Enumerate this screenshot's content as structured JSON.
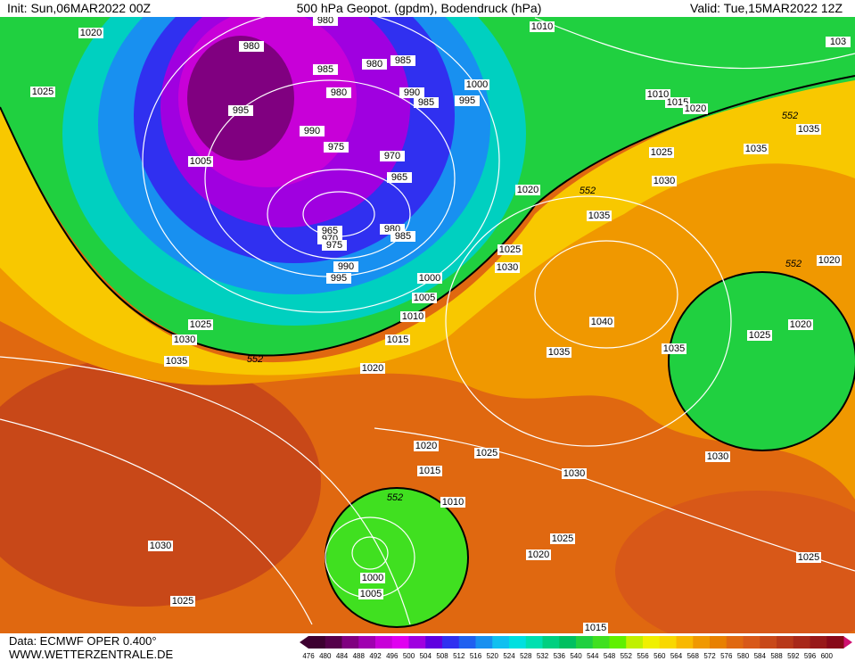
{
  "header": {
    "init": "Init: Sun,06MAR2022 00Z",
    "title": "500 hPa Geopot. (gpdm), Bodendruck (hPa)",
    "valid": "Valid: Tue,15MAR2022 12Z"
  },
  "footer": {
    "source": "Data: ECMWF OPER 0.400°",
    "site": "WWW.WETTERZENTRALE.DE"
  },
  "colorbar": {
    "labels": [
      476,
      480,
      484,
      488,
      492,
      496,
      500,
      504,
      508,
      512,
      516,
      520,
      524,
      528,
      532,
      536,
      540,
      544,
      548,
      552,
      556,
      560,
      564,
      568,
      572,
      576,
      580,
      584,
      588,
      592,
      596,
      600
    ]
  },
  "isobar_labels": [
    "1020",
    "1010",
    "103",
    "980",
    "980",
    "985",
    "980",
    "985",
    "1025",
    "980",
    "990",
    "985",
    "1000",
    "995",
    "1010",
    "1015",
    "1020",
    "995",
    "990",
    "975",
    "970",
    "1005",
    "965",
    "1035",
    "1035",
    "1025",
    "1030",
    "1020",
    "1035",
    "965",
    "970",
    "975",
    "980",
    "985",
    "1025",
    "1030",
    "990",
    "995",
    "1000",
    "1020",
    "1005",
    "1010",
    "1040",
    "1020",
    "1025",
    "1025",
    "1030",
    "1015",
    "1035",
    "1035",
    "1035",
    "1020",
    "1020",
    "1025",
    "1030",
    "1015",
    "1030",
    "1010",
    "1030",
    "1025",
    "1020",
    "1025",
    "1000",
    "1005",
    "1025",
    "1015"
  ],
  "contour_labels": [
    "552",
    "552",
    "552",
    "552",
    "552"
  ]
}
